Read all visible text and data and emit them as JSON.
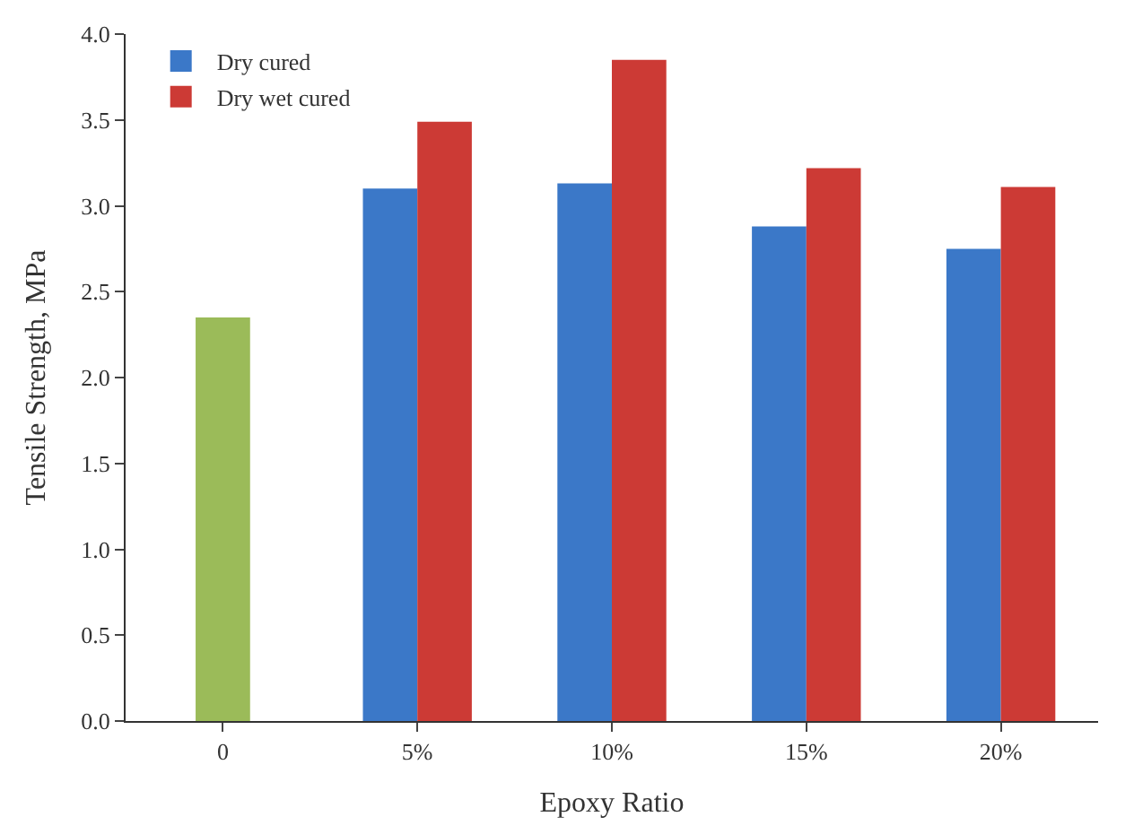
{
  "chart_data": {
    "type": "bar",
    "xlabel": "Epoxy Ratio",
    "ylabel": "Tensile Strength, MPa",
    "categories": [
      "0",
      "5%",
      "10%",
      "15%",
      "20%"
    ],
    "series": [
      {
        "color": "#9bbb59",
        "values": [
          2.35,
          null,
          null,
          null,
          null
        ]
      },
      {
        "name": "Dry cured",
        "color": "#3b78c8",
        "values": [
          null,
          3.1,
          3.13,
          2.88,
          2.75
        ]
      },
      {
        "name": "Dry wet cured",
        "color": "#cc3a35",
        "values": [
          null,
          3.49,
          3.85,
          3.22,
          3.11
        ]
      }
    ],
    "ylim": [
      0,
      4
    ],
    "yticks": [
      {
        "value": 0,
        "label": "0.0"
      },
      0.5,
      {
        "value": 1,
        "label": "1.0"
      },
      1.5,
      {
        "value": 2,
        "label": "2.0"
      },
      2.5,
      {
        "value": 3,
        "label": "3.0"
      },
      3.5,
      {
        "value": 4,
        "label": "4.0"
      }
    ],
    "legend": "top left"
  }
}
